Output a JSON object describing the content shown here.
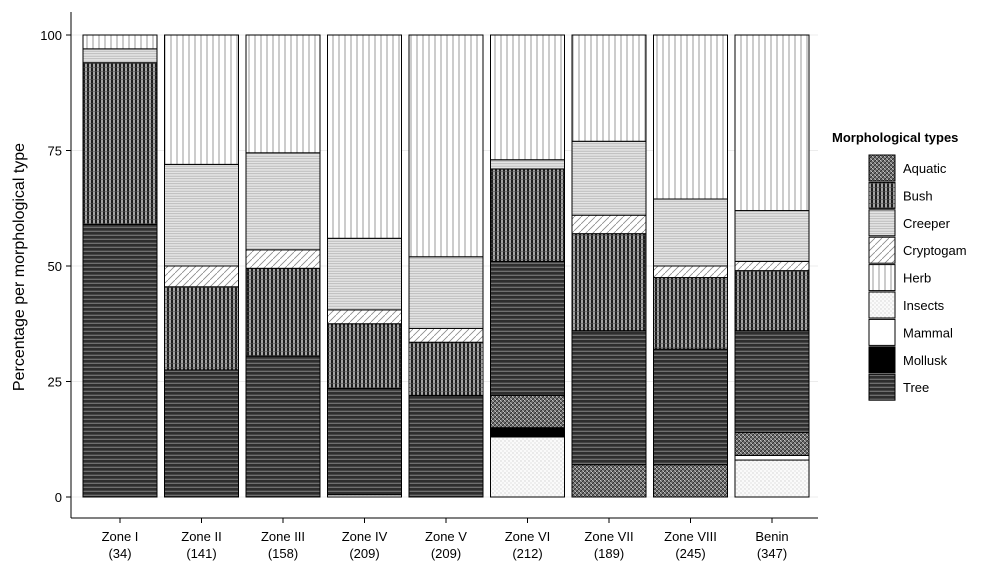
{
  "chart_data": {
    "type": "bar",
    "stacked": true,
    "ylabel": "Percentage per morphological type",
    "ylim": [
      0,
      100
    ],
    "yticks": [
      0,
      25,
      50,
      75,
      100
    ],
    "grid": true,
    "legend_position": "right",
    "legend_title": "Morphological types",
    "categories": [
      [
        "Zone I",
        "(34)"
      ],
      [
        "Zone II",
        "(141)"
      ],
      [
        "Zone III",
        "(158)"
      ],
      [
        "Zone IV",
        "(209)"
      ],
      [
        "Zone V",
        "(209)"
      ],
      [
        "Zone VI",
        "(212)"
      ],
      [
        "Zone VII",
        "(189)"
      ],
      [
        "Zone VIII",
        "(245)"
      ],
      [
        "Benin",
        "(347)"
      ]
    ],
    "series": [
      {
        "name": "Insects",
        "values": [
          0,
          0,
          0,
          0.5,
          0,
          13,
          0,
          0,
          8
        ]
      },
      {
        "name": "Mollusk",
        "values": [
          0,
          0,
          0,
          0,
          0,
          2,
          0,
          0,
          0
        ]
      },
      {
        "name": "Mammal",
        "values": [
          0,
          0,
          0,
          0,
          0,
          0,
          0,
          0,
          1
        ]
      },
      {
        "name": "Aquatic",
        "values": [
          0,
          0,
          0,
          0,
          0,
          7,
          7,
          7,
          5
        ]
      },
      {
        "name": "Tree",
        "values": [
          59,
          27.5,
          30.5,
          23,
          22,
          29,
          29,
          25,
          22
        ]
      },
      {
        "name": "Bush",
        "values": [
          35,
          18,
          19,
          14,
          11.5,
          20,
          21,
          15.5,
          13
        ]
      },
      {
        "name": "Cryptogam",
        "values": [
          0,
          4.5,
          4,
          3,
          3,
          0,
          4,
          2.5,
          2
        ]
      },
      {
        "name": "Creeper",
        "values": [
          3,
          22,
          21,
          15.5,
          15.5,
          2,
          16,
          14.5,
          11
        ]
      },
      {
        "name": "Herb",
        "values": [
          3,
          28,
          25.5,
          44,
          48,
          27,
          23,
          35.5,
          38
        ]
      }
    ],
    "legend_order": [
      "Aquatic",
      "Bush",
      "Creeper",
      "Cryptogam",
      "Herb",
      "Insects",
      "Mammal",
      "Mollusk",
      "Tree"
    ]
  }
}
